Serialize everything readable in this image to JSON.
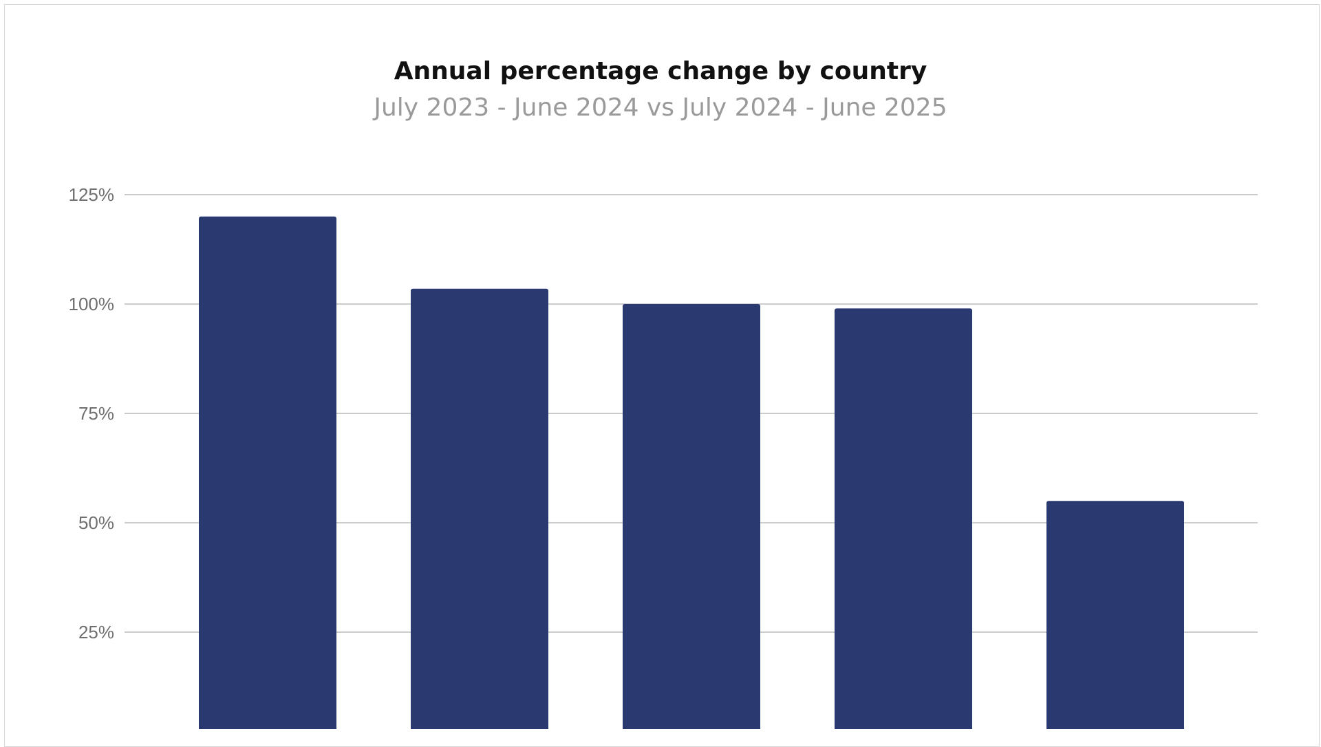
{
  "chart_data": {
    "type": "bar",
    "title": "Annual percentage change by country",
    "subtitle": "July 2023 - June 2024 vs July 2024 - June 2025",
    "categories": [
      "",
      "",
      "",
      "",
      ""
    ],
    "values": [
      120,
      103.5,
      100,
      99,
      55
    ],
    "yticks": [
      "25%",
      "50%",
      "75%",
      "100%",
      "125%"
    ],
    "ytick_values": [
      25,
      50,
      75,
      100,
      125
    ],
    "ylim": [
      0,
      125
    ],
    "grid": true,
    "legend": "none",
    "bar_color": "#2a3970",
    "grid_color": "#cccccc"
  }
}
